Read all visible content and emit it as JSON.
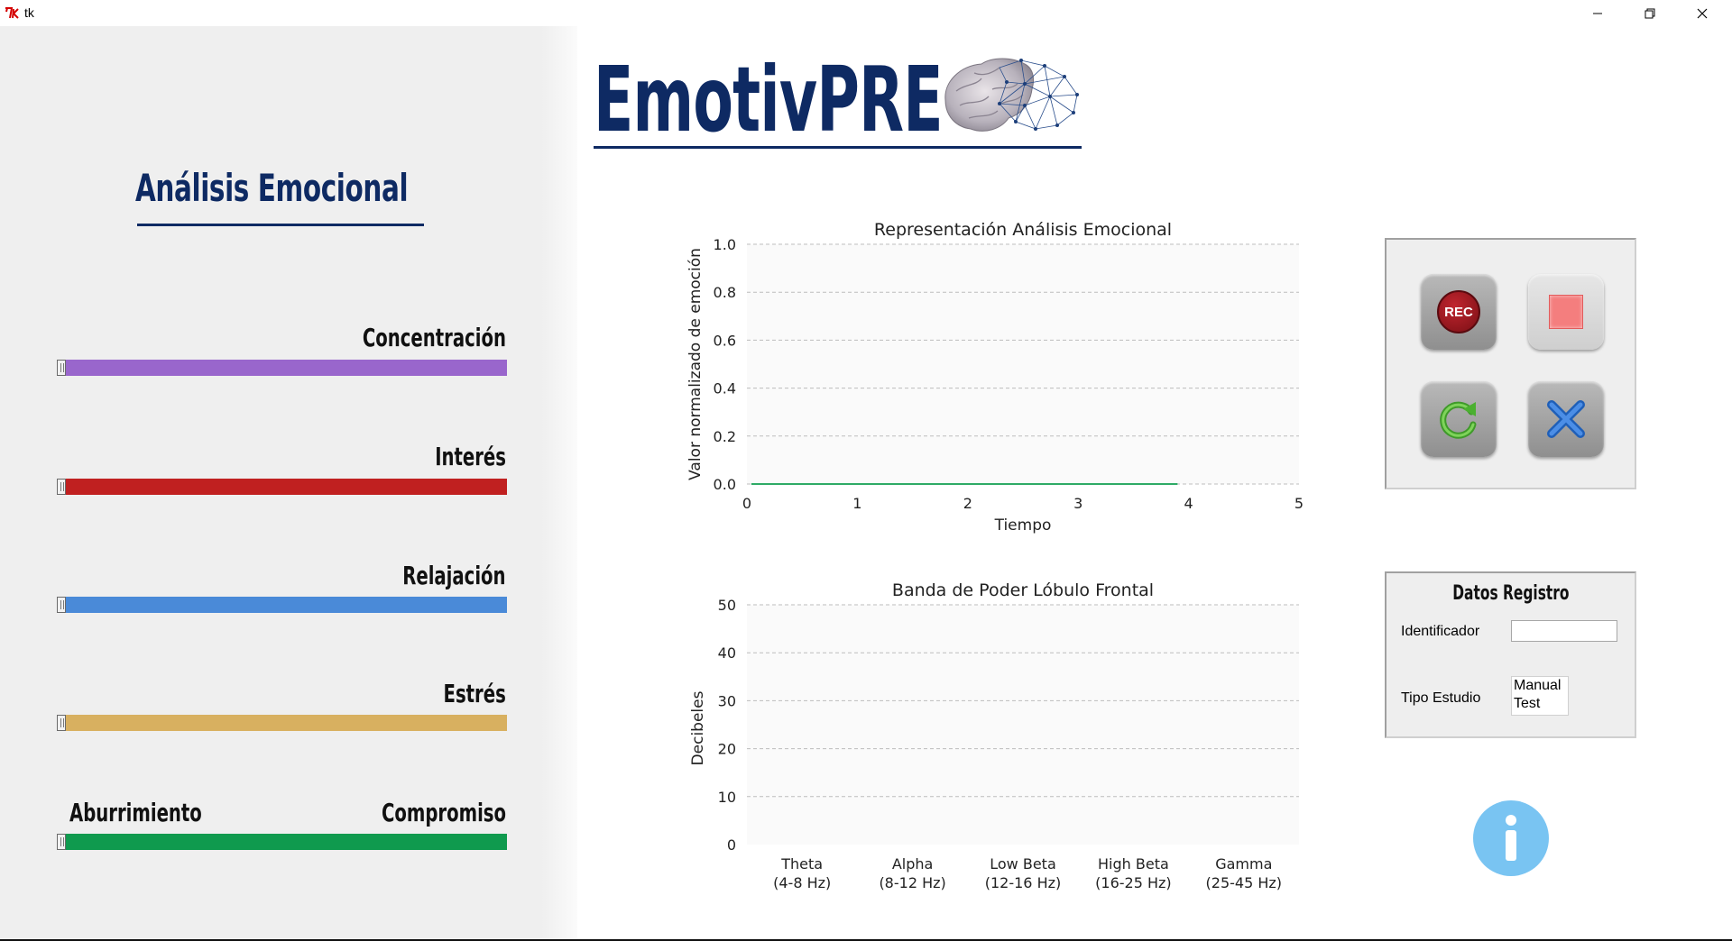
{
  "window": {
    "title": "tk"
  },
  "left_panel": {
    "title": "Análisis Emocional",
    "sliders": [
      {
        "label": "Concentración",
        "color": "#9966cc",
        "value": 0
      },
      {
        "label": "Interés",
        "color": "#c02020",
        "value": 0
      },
      {
        "label": "Relajación",
        "color": "#4a8ad8",
        "value": 0
      },
      {
        "label": "Estrés",
        "color": "#d8b060",
        "value": 0
      },
      {
        "label_left": "Aburrimiento",
        "label_right": "Compromiso",
        "color": "#0f9a4e",
        "value": 0
      }
    ]
  },
  "logo": {
    "text": "EmotivPRE",
    "icon": "brain-network-icon",
    "color": "#0e2a63"
  },
  "charts": {
    "emotion": {
      "chart_data": {
        "type": "line",
        "title": "Representación Análisis Emocional",
        "xlabel": "Tiempo",
        "ylabel": "Valor normalizado de emoción",
        "xlim": [
          0,
          5
        ],
        "ylim": [
          0,
          1.0
        ],
        "x_ticks": [
          "0",
          "1",
          "2",
          "3",
          "4",
          "5"
        ],
        "y_ticks": [
          "0.0",
          "0.2",
          "0.4",
          "0.6",
          "0.8",
          "1.0"
        ],
        "grid": "y-dashed",
        "series": [
          {
            "x": [
              0.04,
              3.9
            ],
            "y": [
              0.0,
              0.0
            ],
            "color": "#2eaa66"
          }
        ]
      }
    },
    "bands": {
      "chart_data": {
        "type": "bar",
        "title": "Banda de Poder Lóbulo Frontal",
        "xlabel": "",
        "ylabel": "Decibeles",
        "ylim": [
          0,
          50
        ],
        "y_ticks": [
          "0",
          "10",
          "20",
          "30",
          "40",
          "50"
        ],
        "grid": "y-dashed",
        "categories": [
          {
            "name": "Theta",
            "range": "(4-8 Hz)"
          },
          {
            "name": "Alpha",
            "range": "(8-12 Hz)"
          },
          {
            "name": "Low Beta",
            "range": "(12-16 Hz)"
          },
          {
            "name": "High Beta",
            "range": "(16-25 Hz)"
          },
          {
            "name": "Gamma",
            "range": "(25-45 Hz)"
          }
        ],
        "values": [
          0,
          0,
          0,
          0,
          0
        ]
      }
    }
  },
  "controls": {
    "rec_label": "REC",
    "buttons": [
      "record-button",
      "stop-button",
      "refresh-button",
      "close-button"
    ]
  },
  "data_panel": {
    "title": "Datos Registro",
    "identifier_label": "Identificador",
    "identifier_value": "",
    "study_label": "Tipo Estudio",
    "study_options": [
      "Manual",
      "Test"
    ]
  },
  "info_button": {
    "icon": "info-icon",
    "color": "#79c4f2"
  }
}
